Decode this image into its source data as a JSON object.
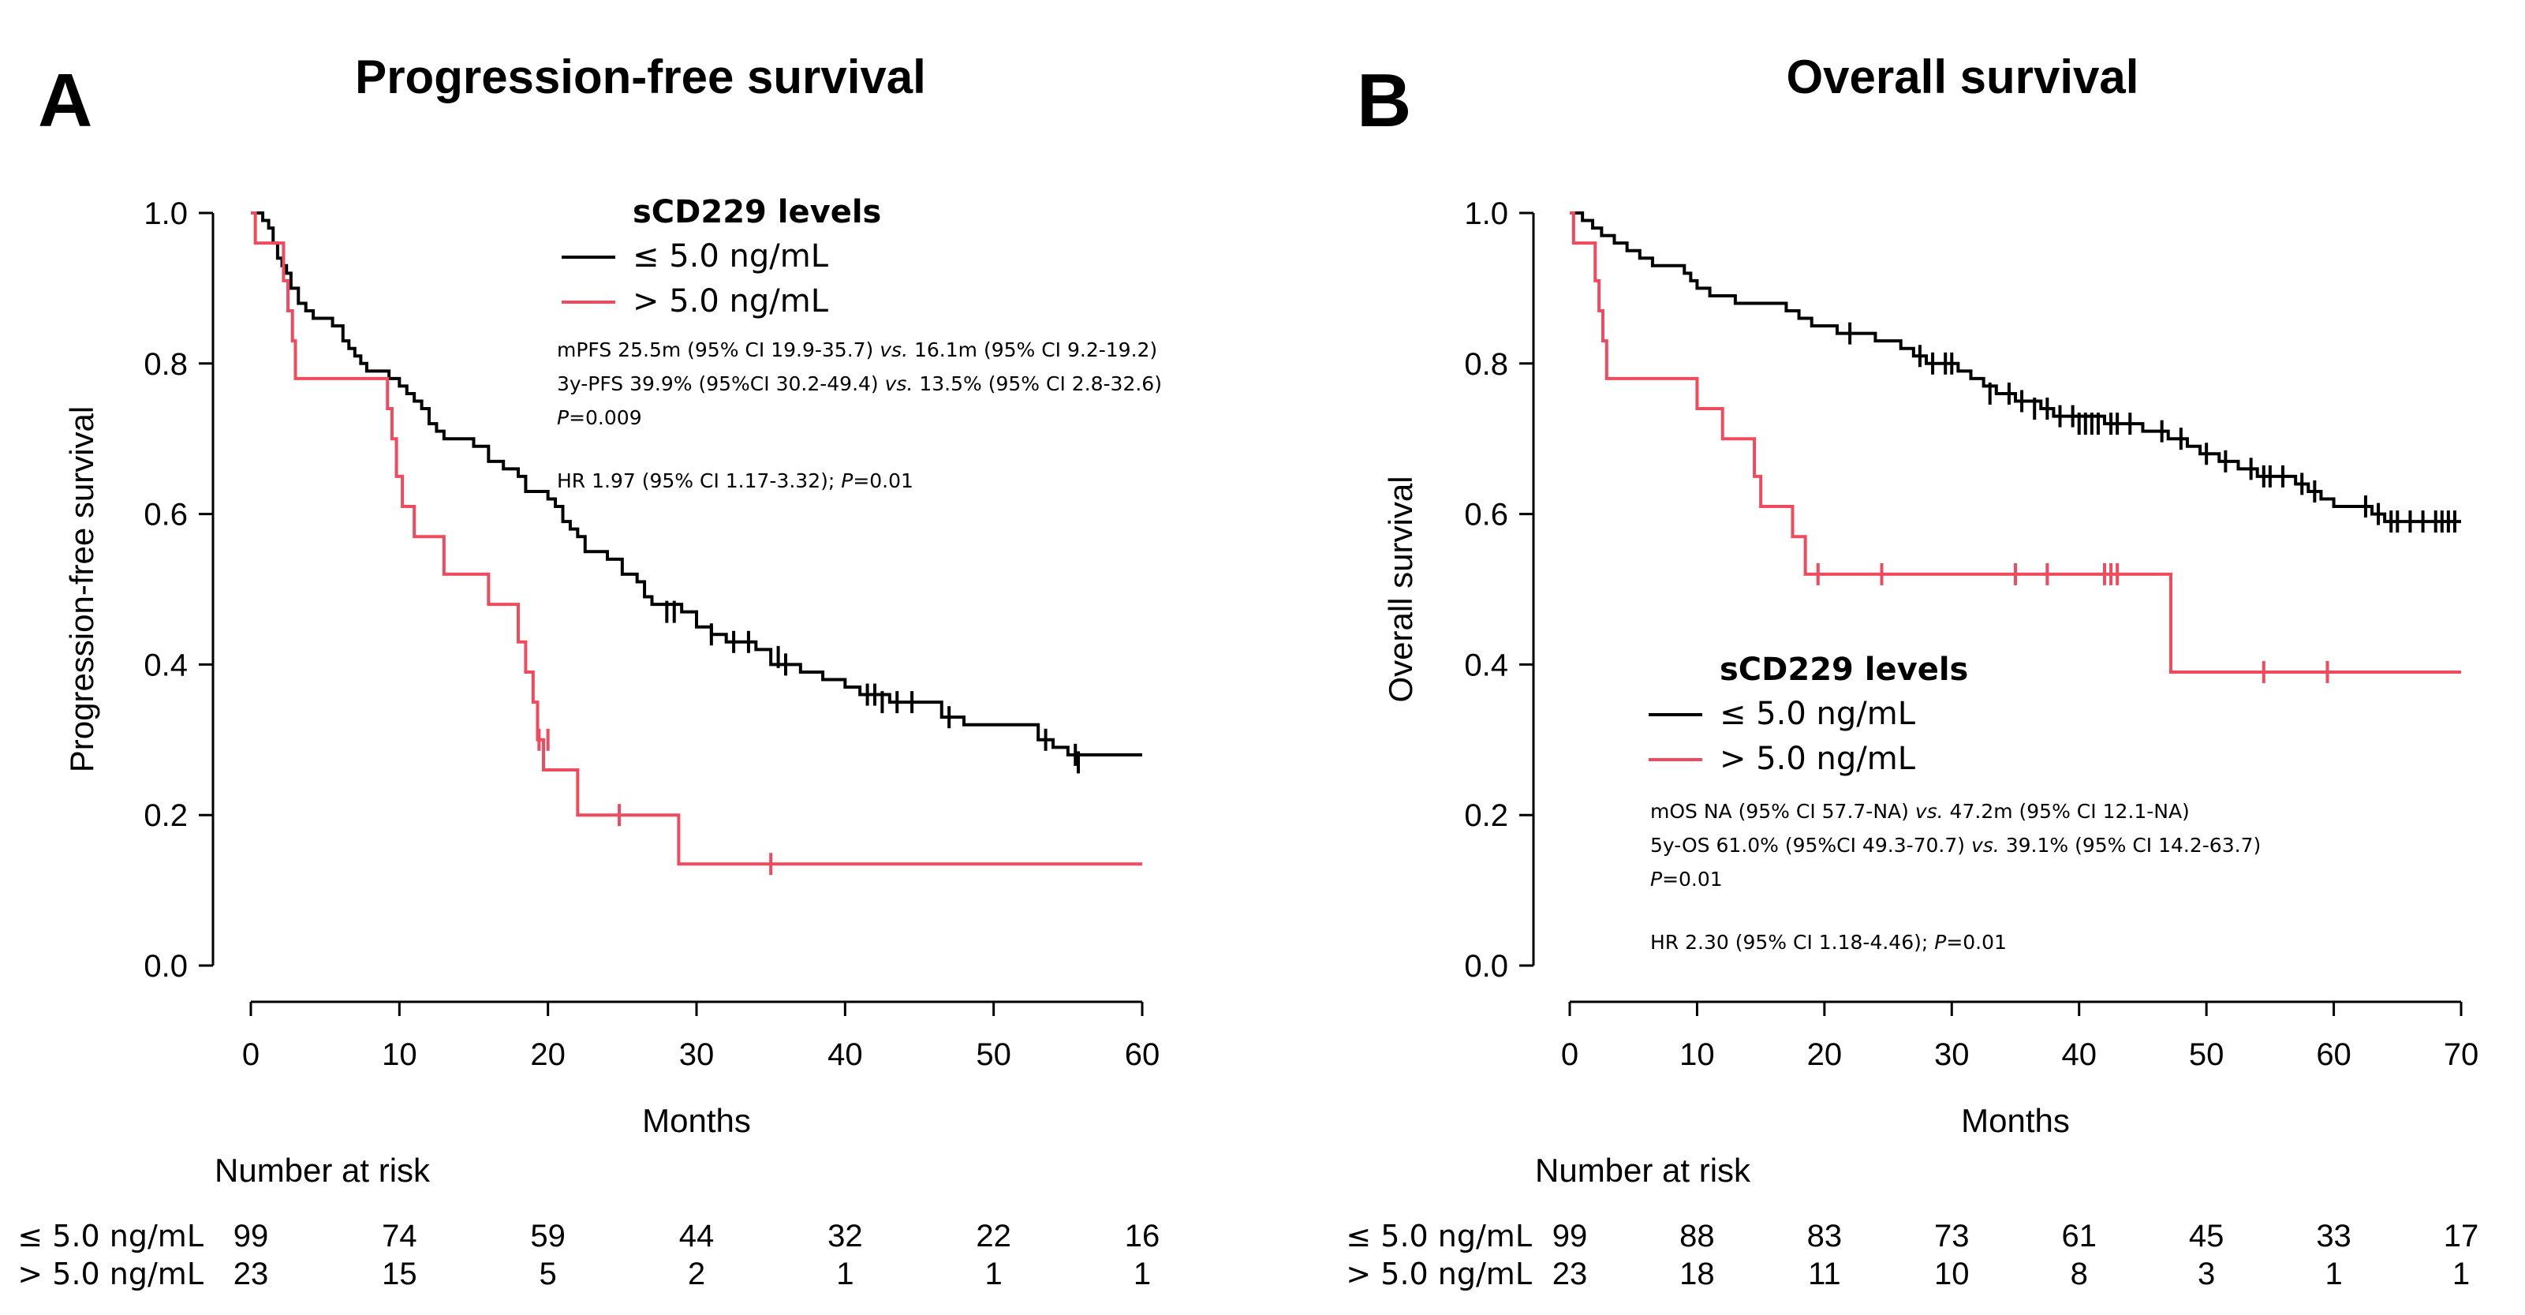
{
  "chart_data": [
    {
      "type": "line",
      "panel_letter": "A",
      "title": "Progression-free survival",
      "xlabel": "Months",
      "ylabel": "Progression-free survival",
      "xlim": [
        0,
        60
      ],
      "ylim": [
        0,
        1.0
      ],
      "xticks": [
        "0",
        "10",
        "20",
        "30",
        "40",
        "50",
        "60"
      ],
      "yticks": [
        "0.0",
        "0.2",
        "0.4",
        "0.6",
        "0.8",
        "1.0"
      ],
      "legend": {
        "title": "sCD229 levels",
        "position": "top-right",
        "entries": [
          "≤ 5.0 ng/mL",
          "> 5.0 ng/mL"
        ]
      },
      "annotations": [
        "mPFS 25.5m (95% CI 19.9-35.7) vs. 16.1m (95% CI 9.2-19.2)",
        "3y-PFS 39.9% (95%CI 30.2-49.4) vs. 13.5% (95% CI 2.8-32.6)",
        "P=0.009",
        "HR 1.97 (95% CI 1.17-3.32); P=0.01"
      ],
      "series": [
        {
          "name": "≤ 5.0 ng/mL",
          "color": "#000000",
          "steps": [
            [
              0,
              1.0
            ],
            [
              0.8,
              0.99
            ],
            [
              1.2,
              0.98
            ],
            [
              1.5,
              0.96
            ],
            [
              1.8,
              0.94
            ],
            [
              2.1,
              0.93
            ],
            [
              2.4,
              0.92
            ],
            [
              2.7,
              0.9
            ],
            [
              3.2,
              0.88
            ],
            [
              3.7,
              0.87
            ],
            [
              4.2,
              0.86
            ],
            [
              5.5,
              0.85
            ],
            [
              6.2,
              0.83
            ],
            [
              6.6,
              0.82
            ],
            [
              7.0,
              0.81
            ],
            [
              7.4,
              0.8
            ],
            [
              7.8,
              0.79
            ],
            [
              9.3,
              0.78
            ],
            [
              10.0,
              0.77
            ],
            [
              10.5,
              0.76
            ],
            [
              11.0,
              0.75
            ],
            [
              11.5,
              0.74
            ],
            [
              12.0,
              0.72
            ],
            [
              12.5,
              0.71
            ],
            [
              13.0,
              0.7
            ],
            [
              15.0,
              0.69
            ],
            [
              16.0,
              0.67
            ],
            [
              17.0,
              0.66
            ],
            [
              18.0,
              0.65
            ],
            [
              18.5,
              0.63
            ],
            [
              20.0,
              0.62
            ],
            [
              20.5,
              0.61
            ],
            [
              21.0,
              0.59
            ],
            [
              21.5,
              0.58
            ],
            [
              22.0,
              0.57
            ],
            [
              22.5,
              0.55
            ],
            [
              24.0,
              0.54
            ],
            [
              25.0,
              0.52
            ],
            [
              26.0,
              0.51
            ],
            [
              26.5,
              0.49
            ],
            [
              27.0,
              0.48
            ],
            [
              29.0,
              0.47
            ],
            [
              30.0,
              0.45
            ],
            [
              31.0,
              0.44
            ],
            [
              32.0,
              0.43
            ],
            [
              34.0,
              0.42
            ],
            [
              35.0,
              0.4
            ],
            [
              37.0,
              0.39
            ],
            [
              38.5,
              0.38
            ],
            [
              40.0,
              0.37
            ],
            [
              41.0,
              0.36
            ],
            [
              43.0,
              0.35
            ],
            [
              46.5,
              0.33
            ],
            [
              48.0,
              0.32
            ],
            [
              53.0,
              0.3
            ],
            [
              54.0,
              0.29
            ],
            [
              55.0,
              0.28
            ],
            [
              60,
              0.28
            ]
          ],
          "censors": [
            [
              28.0,
              0.47
            ],
            [
              28.5,
              0.47
            ],
            [
              31.0,
              0.44
            ],
            [
              32.5,
              0.43
            ],
            [
              33.5,
              0.43
            ],
            [
              35.5,
              0.41
            ],
            [
              36.0,
              0.4
            ],
            [
              41.5,
              0.36
            ],
            [
              42.0,
              0.36
            ],
            [
              42.5,
              0.35
            ],
            [
              43.5,
              0.35
            ],
            [
              44.5,
              0.35
            ],
            [
              47.0,
              0.33
            ],
            [
              53.5,
              0.3
            ],
            [
              55.5,
              0.28
            ],
            [
              55.7,
              0.27
            ]
          ]
        },
        {
          "name": "> 5.0 ng/mL",
          "color": "#f04a5e",
          "steps": [
            [
              0,
              1.0
            ],
            [
              0.3,
              0.96
            ],
            [
              2.2,
              0.91
            ],
            [
              2.5,
              0.87
            ],
            [
              2.8,
              0.83
            ],
            [
              3.0,
              0.78
            ],
            [
              9.2,
              0.74
            ],
            [
              9.5,
              0.7
            ],
            [
              9.8,
              0.65
            ],
            [
              10.2,
              0.61
            ],
            [
              11.0,
              0.57
            ],
            [
              13.0,
              0.52
            ],
            [
              16.0,
              0.48
            ],
            [
              18.0,
              0.43
            ],
            [
              18.5,
              0.39
            ],
            [
              19.0,
              0.35
            ],
            [
              19.3,
              0.3
            ],
            [
              19.7,
              0.26
            ],
            [
              22.0,
              0.2
            ],
            [
              28.8,
              0.135
            ],
            [
              60,
              0.135
            ]
          ],
          "censors": [
            [
              19.4,
              0.3
            ],
            [
              20.0,
              0.3
            ],
            [
              24.8,
              0.2
            ],
            [
              35.0,
              0.135
            ]
          ]
        }
      ],
      "risk_table": {
        "title": "Number at risk",
        "times": [
          0,
          10,
          20,
          30,
          40,
          50,
          60
        ],
        "rows": [
          {
            "label": "≤ 5.0 ng/mL",
            "values": [
              99,
              74,
              59,
              44,
              32,
              22,
              16
            ]
          },
          {
            "label": "> 5.0 ng/mL",
            "values": [
              23,
              15,
              5,
              2,
              1,
              1,
              1
            ]
          }
        ]
      }
    },
    {
      "type": "line",
      "panel_letter": "B",
      "title": "Overall survival",
      "xlabel": "Months",
      "ylabel": "Overall survival",
      "xlim": [
        0,
        70
      ],
      "ylim": [
        0,
        1.0
      ],
      "xticks": [
        "0",
        "10",
        "20",
        "30",
        "40",
        "50",
        "60",
        "70"
      ],
      "yticks": [
        "0.0",
        "0.2",
        "0.4",
        "0.6",
        "0.8",
        "1.0"
      ],
      "legend": {
        "title": "sCD229 levels",
        "position": "center-right",
        "entries": [
          "≤ 5.0 ng/mL",
          "> 5.0 ng/mL"
        ]
      },
      "annotations": [
        "mOS NA (95% CI 57.7-NA) vs. 47.2m (95% CI 12.1-NA)",
        "5y-OS 61.0% (95%CI 49.3-70.7) vs. 39.1% (95% CI 14.2-63.7)",
        "P=0.01",
        "HR 2.30 (95% CI 1.18-4.46); P=0.01"
      ],
      "series": [
        {
          "name": "≤ 5.0 ng/mL",
          "color": "#000000",
          "steps": [
            [
              0,
              1.0
            ],
            [
              1.0,
              0.99
            ],
            [
              1.8,
              0.98
            ],
            [
              2.5,
              0.97
            ],
            [
              3.5,
              0.96
            ],
            [
              4.5,
              0.95
            ],
            [
              5.5,
              0.94
            ],
            [
              6.5,
              0.93
            ],
            [
              9.0,
              0.92
            ],
            [
              9.5,
              0.91
            ],
            [
              10.0,
              0.9
            ],
            [
              11.0,
              0.89
            ],
            [
              13.0,
              0.88
            ],
            [
              17.0,
              0.87
            ],
            [
              18.0,
              0.86
            ],
            [
              19.0,
              0.85
            ],
            [
              21.0,
              0.84
            ],
            [
              24.0,
              0.83
            ],
            [
              26.0,
              0.82
            ],
            [
              27.0,
              0.81
            ],
            [
              28.0,
              0.8
            ],
            [
              30.5,
              0.79
            ],
            [
              31.5,
              0.78
            ],
            [
              32.5,
              0.77
            ],
            [
              33.5,
              0.76
            ],
            [
              35.0,
              0.75
            ],
            [
              37.0,
              0.74
            ],
            [
              38.0,
              0.73
            ],
            [
              42.0,
              0.72
            ],
            [
              45.0,
              0.71
            ],
            [
              47.0,
              0.7
            ],
            [
              48.5,
              0.69
            ],
            [
              49.5,
              0.68
            ],
            [
              51.0,
              0.67
            ],
            [
              52.5,
              0.66
            ],
            [
              54.0,
              0.65
            ],
            [
              57.0,
              0.64
            ],
            [
              58.0,
              0.63
            ],
            [
              59.0,
              0.62
            ],
            [
              60.0,
              0.61
            ],
            [
              63.0,
              0.6
            ],
            [
              64.0,
              0.59
            ],
            [
              70,
              0.59
            ]
          ],
          "censors": [
            [
              22.0,
              0.84
            ],
            [
              27.5,
              0.81
            ],
            [
              28.5,
              0.8
            ],
            [
              29.5,
              0.8
            ],
            [
              30.0,
              0.8
            ],
            [
              33.0,
              0.76
            ],
            [
              34.5,
              0.76
            ],
            [
              35.5,
              0.75
            ],
            [
              36.5,
              0.74
            ],
            [
              37.5,
              0.74
            ],
            [
              38.5,
              0.73
            ],
            [
              39.5,
              0.73
            ],
            [
              40.0,
              0.72
            ],
            [
              40.5,
              0.72
            ],
            [
              41.0,
              0.72
            ],
            [
              41.5,
              0.72
            ],
            [
              42.5,
              0.72
            ],
            [
              43.0,
              0.72
            ],
            [
              44.0,
              0.72
            ],
            [
              46.5,
              0.71
            ],
            [
              48.0,
              0.7
            ],
            [
              50.0,
              0.68
            ],
            [
              51.5,
              0.67
            ],
            [
              53.5,
              0.66
            ],
            [
              54.5,
              0.65
            ],
            [
              55.0,
              0.65
            ],
            [
              56.0,
              0.65
            ],
            [
              57.5,
              0.64
            ],
            [
              58.5,
              0.63
            ],
            [
              62.5,
              0.61
            ],
            [
              63.5,
              0.6
            ],
            [
              64.5,
              0.59
            ],
            [
              65.0,
              0.59
            ],
            [
              66.0,
              0.59
            ],
            [
              67.0,
              0.59
            ],
            [
              68.0,
              0.59
            ],
            [
              68.5,
              0.59
            ],
            [
              69.0,
              0.59
            ],
            [
              69.5,
              0.59
            ]
          ]
        },
        {
          "name": "> 5.0 ng/mL",
          "color": "#f04a5e",
          "steps": [
            [
              0,
              1.0
            ],
            [
              0.3,
              0.96
            ],
            [
              2.0,
              0.91
            ],
            [
              2.3,
              0.87
            ],
            [
              2.6,
              0.83
            ],
            [
              2.9,
              0.78
            ],
            [
              10.0,
              0.74
            ],
            [
              12.0,
              0.7
            ],
            [
              14.5,
              0.65
            ],
            [
              15.0,
              0.61
            ],
            [
              17.5,
              0.57
            ],
            [
              18.5,
              0.52
            ],
            [
              47.2,
              0.39
            ],
            [
              70,
              0.39
            ]
          ],
          "censors": [
            [
              19.5,
              0.52
            ],
            [
              24.5,
              0.52
            ],
            [
              35.0,
              0.52
            ],
            [
              37.5,
              0.52
            ],
            [
              42.0,
              0.52
            ],
            [
              42.5,
              0.52
            ],
            [
              43.0,
              0.52
            ],
            [
              54.5,
              0.39
            ],
            [
              59.5,
              0.39
            ]
          ]
        }
      ],
      "risk_table": {
        "title": "Number at risk",
        "times": [
          0,
          10,
          20,
          30,
          40,
          50,
          60,
          70
        ],
        "rows": [
          {
            "label": "≤ 5.0 ng/mL",
            "values": [
              99,
              88,
              83,
              73,
              61,
              45,
              33,
              17
            ]
          },
          {
            "label": "> 5.0 ng/mL",
            "values": [
              23,
              18,
              11,
              10,
              8,
              3,
              1,
              1
            ]
          }
        ]
      }
    }
  ]
}
